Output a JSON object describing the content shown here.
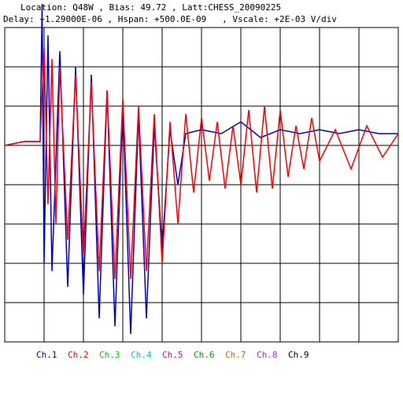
{
  "header": {
    "line1": "Location: Q48W , Bias: 49.72 , Latt:CHESS_20090225",
    "line2": "Delay: +1.29000E-06 , Hspan: +500.0E-09   , Vscale: +2E-03 V/div"
  },
  "legend": [
    {
      "label": "Ch.1",
      "color": "#0000cc"
    },
    {
      "label": "Ch.2",
      "color": "#ff0000"
    },
    {
      "label": "Ch.3",
      "color": "#00cc00"
    },
    {
      "label": "Ch.4",
      "color": "#00cccc"
    },
    {
      "label": "Ch.5",
      "color": "#cc00cc"
    },
    {
      "label": "Ch.6",
      "color": "#009900"
    },
    {
      "label": "Ch.7",
      "color": "#cc6600"
    },
    {
      "label": "Ch.8",
      "color": "#9933cc"
    },
    {
      "label": "Ch.9",
      "color": "#000000"
    }
  ],
  "chart_data": {
    "type": "line",
    "x_divisions": 10,
    "y_divisions": 8,
    "grid": true,
    "series": [
      {
        "name": "Ch.1",
        "color": "#0000cc",
        "x": [
          0,
          0.05,
          0.09,
          0.095,
          0.1,
          0.11,
          0.12,
          0.14,
          0.16,
          0.18,
          0.2,
          0.22,
          0.24,
          0.26,
          0.28,
          0.3,
          0.32,
          0.34,
          0.36,
          0.38,
          0.4,
          0.42,
          0.44,
          0.46,
          0.5,
          0.55,
          0.6,
          0.65,
          0.7,
          0.75,
          0.8,
          0.85,
          0.9,
          0.95,
          1.0
        ],
        "y": [
          0,
          0.1,
          0.1,
          3.6,
          -3.0,
          2.8,
          -3.2,
          2.4,
          -3.6,
          2.0,
          -3.8,
          1.8,
          -4.4,
          1.4,
          -4.6,
          1.0,
          -4.8,
          0.8,
          -4.4,
          0.5,
          -2.6,
          0.4,
          -1.0,
          0.3,
          0.4,
          0.3,
          0.6,
          0.2,
          0.4,
          0.3,
          0.4,
          0.3,
          0.4,
          0.3,
          0.3
        ]
      },
      {
        "name": "Ch.2",
        "color": "#ff0000",
        "x": [
          0,
          0.05,
          0.09,
          0.1,
          0.11,
          0.12,
          0.13,
          0.14,
          0.16,
          0.18,
          0.2,
          0.22,
          0.24,
          0.26,
          0.28,
          0.3,
          0.32,
          0.34,
          0.36,
          0.38,
          0.4,
          0.42,
          0.44,
          0.46,
          0.48,
          0.5,
          0.52,
          0.54,
          0.56,
          0.58,
          0.6,
          0.62,
          0.64,
          0.66,
          0.68,
          0.7,
          0.72,
          0.74,
          0.76,
          0.78,
          0.8,
          0.84,
          0.88,
          0.92,
          0.96,
          1.0
        ],
        "y": [
          0,
          0.1,
          0.1,
          2.5,
          -1.5,
          2.2,
          -2.0,
          2.0,
          -2.4,
          1.8,
          -2.8,
          1.6,
          -3.2,
          1.4,
          -3.4,
          1.2,
          -3.4,
          1.0,
          -3.2,
          0.8,
          -3.0,
          0.6,
          -2.0,
          0.8,
          -1.2,
          0.7,
          -0.9,
          0.6,
          -1.1,
          0.5,
          -1.0,
          0.9,
          -1.2,
          1.0,
          -1.1,
          0.9,
          -0.8,
          0.5,
          -0.6,
          0.7,
          -0.4,
          0.4,
          -0.6,
          0.5,
          -0.3,
          0.3
        ]
      }
    ]
  }
}
